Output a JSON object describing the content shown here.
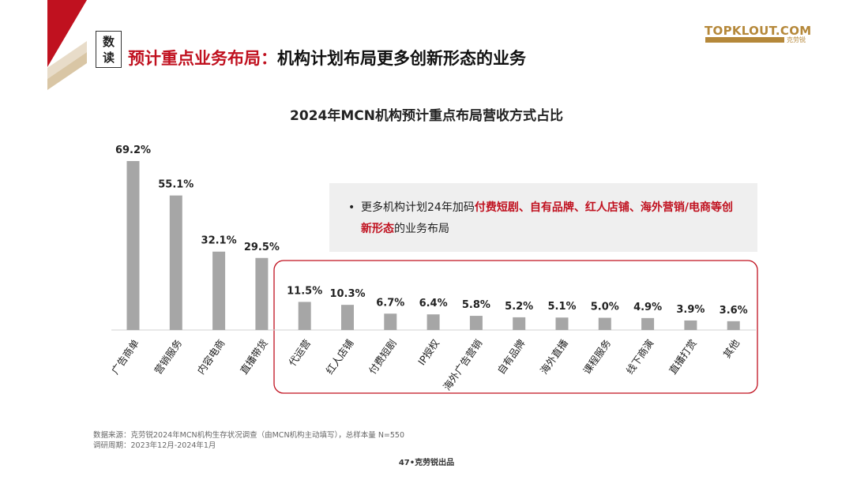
{
  "header": {
    "badge_line1": "数",
    "badge_line2": "读",
    "title_red": "预计重点业务布局",
    "title_sep": "：",
    "title_dark": "机构计划布局更多创新形态的业务",
    "logo_text": "TOPKLOUT.COM",
    "logo_sub": "克劳锐"
  },
  "colors": {
    "accent_red": "#c0111f",
    "bar_gray": "#a6a6a6",
    "logo_gold": "#b5883a",
    "note_bg": "#efefef"
  },
  "note": {
    "bullet": "•",
    "prefix": "更多机构计划24年加码",
    "highlight": "付费短剧、自有品牌、红人店铺、海外营销/电商等创新形态",
    "suffix": "的业务布局"
  },
  "chart_data": {
    "type": "bar",
    "title": "2024年MCN机构预计重点布局营收方式占比",
    "categories": [
      "广告商单",
      "营销服务",
      "内容电商",
      "直播带货",
      "代运营",
      "红人店铺",
      "付费短剧",
      "IP授权",
      "海外广告营销",
      "自有品牌",
      "海外直播",
      "课程服务",
      "线下商演",
      "直播打赏",
      "其他"
    ],
    "values": [
      69.2,
      55.1,
      32.1,
      29.5,
      11.5,
      10.3,
      6.7,
      6.4,
      5.8,
      5.2,
      5.1,
      5.0,
      4.9,
      3.9,
      3.6
    ],
    "value_labels": [
      "69.2%",
      "55.1%",
      "32.1%",
      "29.5%",
      "11.5%",
      "10.3%",
      "6.7%",
      "6.4%",
      "5.8%",
      "5.2%",
      "5.1%",
      "5.0%",
      "4.9%",
      "3.9%",
      "3.6%"
    ],
    "unit": "%",
    "ylim": [
      0,
      70
    ],
    "grid": false,
    "highlight_group": "代运营 to 其他"
  },
  "footer": {
    "source_line1": "数据来源：克劳锐2024年MCN机构生存状况调查（由MCN机构主动填写），总样本量 N=550",
    "source_line2": "调研周期：2023年12月-2024年1月",
    "page": "47•克劳锐出品"
  }
}
